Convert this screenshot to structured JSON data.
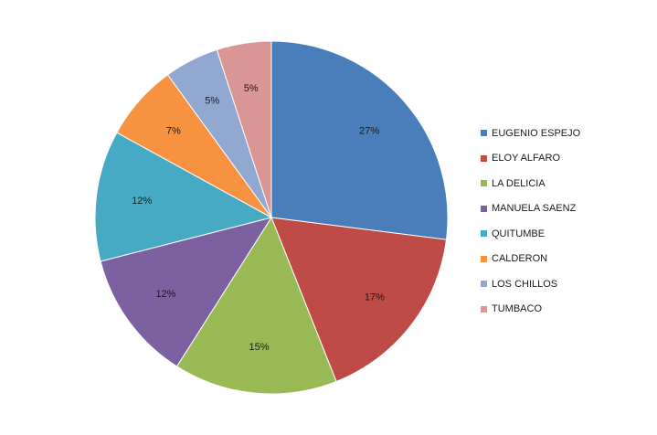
{
  "chart_data": {
    "type": "pie",
    "title": "",
    "categories": [
      "EUGENIO ESPEJO",
      "ELOY ALFARO",
      "LA DELICIA",
      "MANUELA SAENZ",
      "QUITUMBE",
      "CALDERON",
      "LOS CHILLOS",
      "TUMBACO"
    ],
    "values": [
      27,
      17,
      15,
      12,
      12,
      7,
      5,
      5
    ],
    "labels": [
      "27%",
      "17%",
      "15%",
      "12%",
      "12%",
      "7%",
      "5%",
      "5%"
    ],
    "colors": [
      "#4A7EBB",
      "#BE4B48",
      "#98B954",
      "#7D60A0",
      "#46AAC5",
      "#F69240",
      "#91A8D0",
      "#D99694"
    ],
    "legend": {
      "position": "right"
    },
    "start_angle": "12 o'clock",
    "direction": "clockwise"
  }
}
